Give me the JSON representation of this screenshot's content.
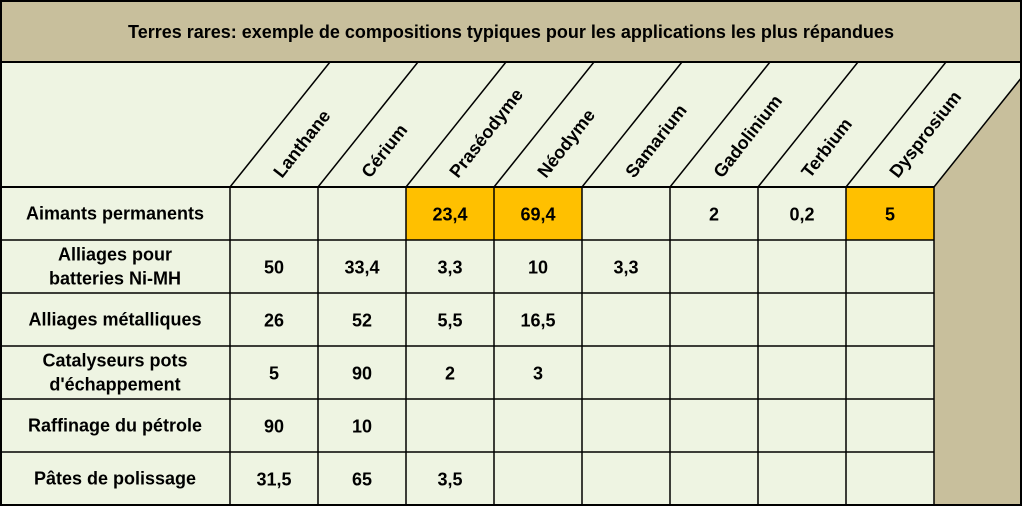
{
  "title": "Terres rares: exemple de compositions typiques pour les applications les plus répandues",
  "colors": {
    "background": "#eef4e2",
    "title_band": "#c8bf9c",
    "side_panel": "#c8bf9c",
    "highlight": "#ffc000",
    "lines": "#000000"
  },
  "chart_data": {
    "type": "table",
    "title": "Terres rares: exemple de compositions typiques pour les applications les plus répandues",
    "columns": [
      "Lanthane",
      "Cérium",
      "Praséodyme",
      "Néodyme",
      "Samarium",
      "Gadolinium",
      "Terbium",
      "Dysprosium"
    ],
    "rows": [
      {
        "label": [
          "Aimants permanents"
        ],
        "values": [
          "",
          "",
          "23,4",
          "69,4",
          "",
          "2",
          "0,2",
          "5"
        ],
        "highlight": [
          false,
          false,
          true,
          true,
          false,
          false,
          false,
          true
        ]
      },
      {
        "label": [
          "Alliages pour",
          "batteries Ni-MH"
        ],
        "values": [
          "50",
          "33,4",
          "3,3",
          "10",
          "3,3",
          "",
          "",
          ""
        ],
        "highlight": [
          false,
          false,
          false,
          false,
          false,
          false,
          false,
          false
        ]
      },
      {
        "label": [
          "Alliages métalliques"
        ],
        "values": [
          "26",
          "52",
          "5,5",
          "16,5",
          "",
          "",
          "",
          ""
        ],
        "highlight": [
          false,
          false,
          false,
          false,
          false,
          false,
          false,
          false
        ]
      },
      {
        "label": [
          "Catalyseurs pots",
          "d'échappement"
        ],
        "values": [
          "5",
          "90",
          "2",
          "3",
          "",
          "",
          "",
          ""
        ],
        "highlight": [
          false,
          false,
          false,
          false,
          false,
          false,
          false,
          false
        ]
      },
      {
        "label": [
          "Raffinage du pétrole"
        ],
        "values": [
          "90",
          "10",
          "",
          "",
          "",
          "",
          "",
          ""
        ],
        "highlight": [
          false,
          false,
          false,
          false,
          false,
          false,
          false,
          false
        ]
      },
      {
        "label": [
          "Pâtes de polissage"
        ],
        "values": [
          "31,5",
          "65",
          "3,5",
          "",
          "",
          "",
          "",
          ""
        ],
        "highlight": [
          false,
          false,
          false,
          false,
          false,
          false,
          false,
          false
        ]
      }
    ]
  }
}
